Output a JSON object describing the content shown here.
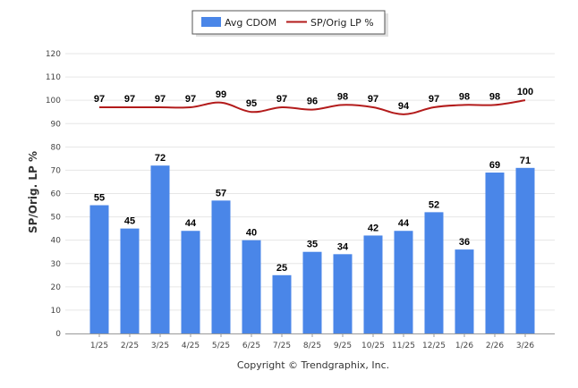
{
  "chart_data": {
    "type": "bar",
    "categories": [
      "1/25",
      "2/25",
      "3/25",
      "4/25",
      "5/25",
      "6/25",
      "7/25",
      "8/25",
      "9/25",
      "10/25",
      "11/25",
      "12/25",
      "1/26",
      "2/26",
      "3/26"
    ],
    "series": [
      {
        "name": "Avg CDOM",
        "type": "bar",
        "color": "#4a86e8",
        "values": [
          55,
          45,
          72,
          44,
          57,
          40,
          25,
          35,
          34,
          42,
          44,
          52,
          36,
          69,
          71
        ]
      },
      {
        "name": "SP/Orig LP %",
        "type": "line",
        "color": "#b31b1b",
        "values": [
          97,
          97,
          97,
          97,
          99,
          95,
          97,
          96,
          98,
          97,
          94,
          97,
          98,
          98,
          100
        ]
      }
    ],
    "ylabel": "SP/Orig. LP %",
    "xlabel": "",
    "ylim": [
      0,
      120
    ],
    "yticks": [
      0,
      10,
      20,
      30,
      40,
      50,
      60,
      70,
      80,
      90,
      100,
      110,
      120
    ],
    "grid": true,
    "legend_position": "top-center"
  },
  "footer": {
    "copyright": "Copyright © Trendgraphix, Inc."
  }
}
